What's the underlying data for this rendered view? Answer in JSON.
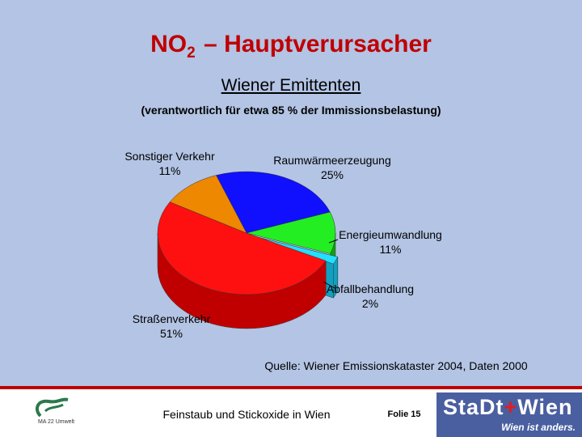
{
  "slide": {
    "title_main": "NO",
    "title_sub": "2",
    "title_rest": " – Hauptverursacher",
    "subtitle": "Wiener Emittenten",
    "note": "(verantwortlich für etwa 85 % der Immissionsbelastung)",
    "source": "Quelle: Wiener Emissionskataster 2004, Daten 2000"
  },
  "chart_data": {
    "type": "pie",
    "categories": [
      "Raumwärmeerzeugung",
      "Energieumwandlung",
      "Abfallbehandlung",
      "Straßenverkehr",
      "Sonstiger Verkehr"
    ],
    "values": [
      25,
      11,
      2,
      51,
      11
    ],
    "value_labels": [
      "25%",
      "11%",
      "2%",
      "51%",
      "11%"
    ],
    "colors": [
      "#1010ff",
      "#22ee22",
      "#22e0ff",
      "#ff1010",
      "#ee8800"
    ],
    "side_colors": [
      "#0808b0",
      "#12a012",
      "#12a0c0",
      "#c00000",
      "#b06000"
    ],
    "exploded": "Abfallbehandlung",
    "style": "3d"
  },
  "footer": {
    "text": "Feinstaub und Stickoxide in Wien",
    "page": "Folie 15",
    "logo_right_title_a": "StaDt",
    "logo_right_plus": "+",
    "logo_right_title_b": "Wien",
    "logo_right_tagline": "Wien ist anders.",
    "logo_left_text": "MA 22 Umwelt"
  }
}
